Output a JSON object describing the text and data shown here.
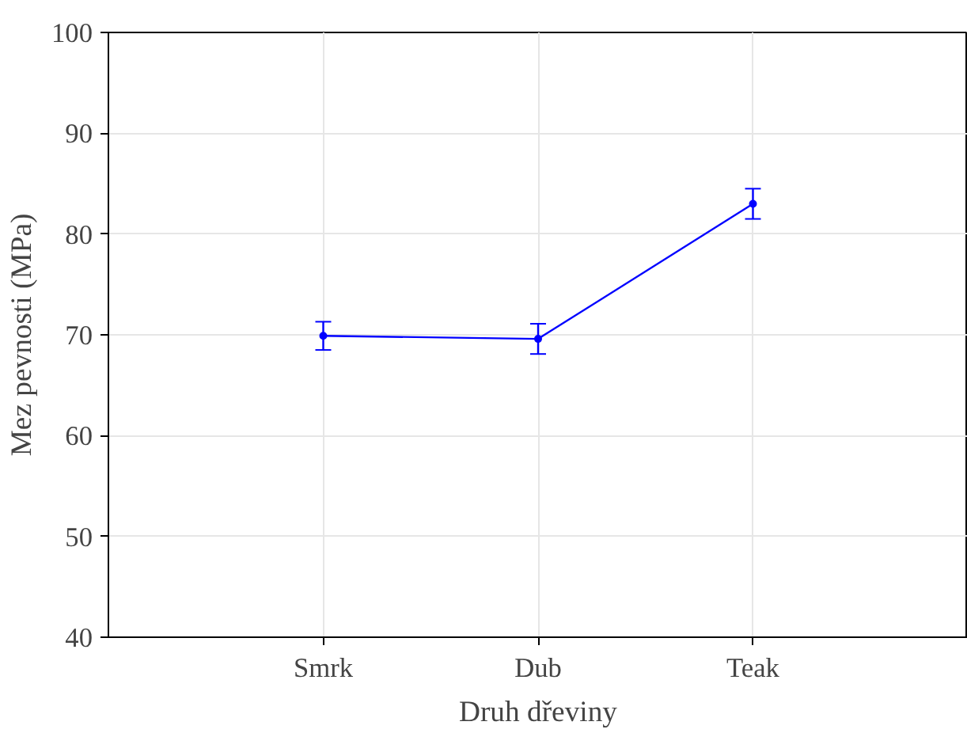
{
  "chart_data": {
    "type": "line",
    "xlabel": "Druh dřeviny",
    "ylabel": "Mez pevnosti (MPa)",
    "categories": [
      "Smrk",
      "Dub",
      "Teak"
    ],
    "series": [
      {
        "color": "#0000ff",
        "values": [
          69.9,
          69.6,
          83.0
        ],
        "errors": [
          1.4,
          1.5,
          1.5
        ]
      }
    ],
    "ylim": [
      40,
      100
    ],
    "yticks": [
      40,
      50,
      60,
      70,
      80,
      90,
      100
    ],
    "grid": true,
    "marker": "circle",
    "line_style": "solid"
  }
}
